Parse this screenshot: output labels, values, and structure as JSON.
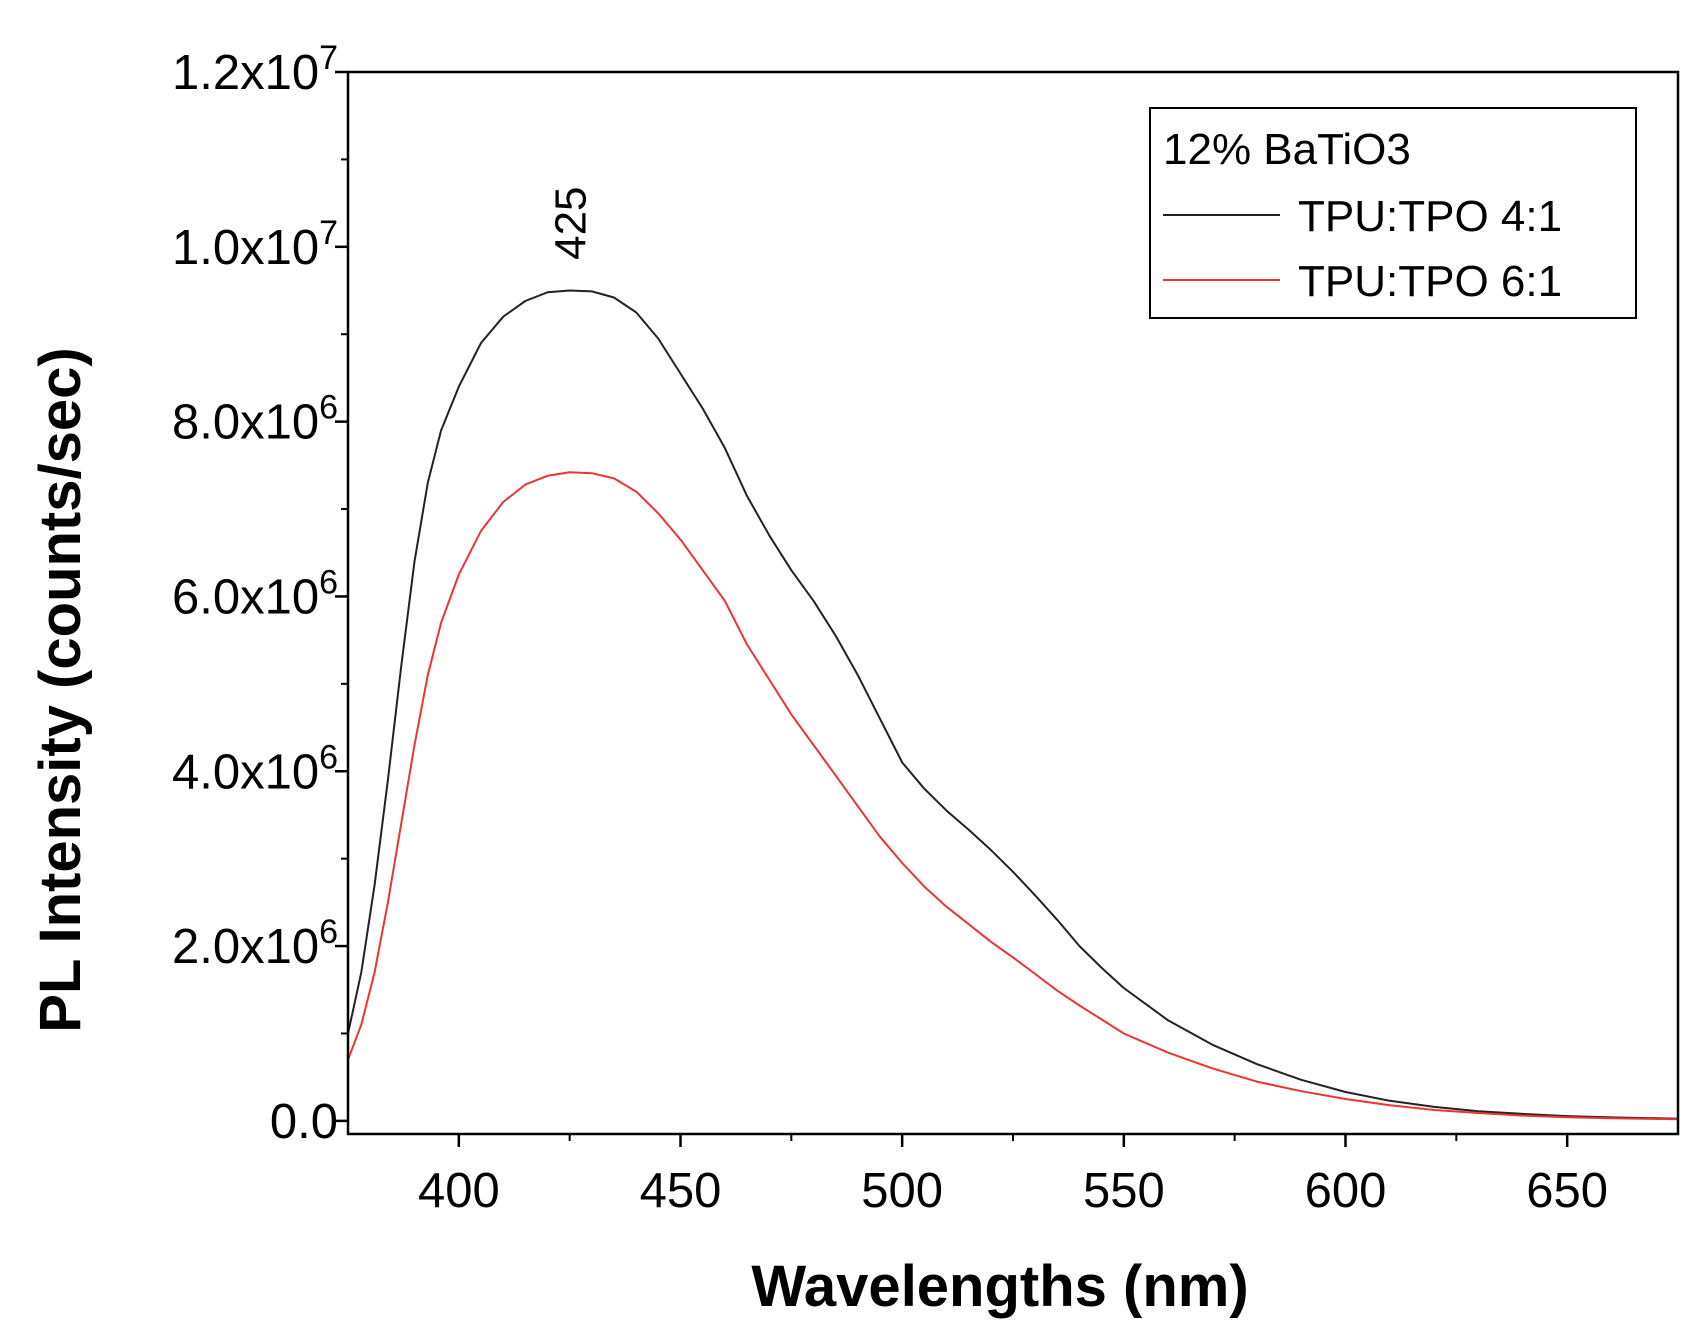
{
  "chart_data": {
    "type": "line",
    "xlabel": "Wavelengths (nm)",
    "ylabel": "PL Intensity (counts/sec)",
    "xlim": [
      375,
      675
    ],
    "ylim": [
      -150000,
      12000000
    ],
    "x_ticks": [
      {
        "value": 400,
        "label": "400"
      },
      {
        "value": 450,
        "label": "450"
      },
      {
        "value": 500,
        "label": "500"
      },
      {
        "value": 550,
        "label": "550"
      },
      {
        "value": 600,
        "label": "600"
      },
      {
        "value": 650,
        "label": "650"
      }
    ],
    "x_minor_ticks": [
      425,
      475,
      525,
      575,
      625
    ],
    "y_ticks": [
      {
        "value": 0,
        "label": "0.0",
        "exp": ""
      },
      {
        "value": 2000000,
        "label": "2.0x10",
        "exp": "6"
      },
      {
        "value": 4000000,
        "label": "4.0x10",
        "exp": "6"
      },
      {
        "value": 6000000,
        "label": "6.0x10",
        "exp": "6"
      },
      {
        "value": 8000000,
        "label": "8.0x10",
        "exp": "6"
      },
      {
        "value": 10000000,
        "label": "1.0x10",
        "exp": "7"
      },
      {
        "value": 12000000,
        "label": "1.2x10",
        "exp": "7"
      }
    ],
    "y_minor_ticks": [
      1000000,
      3000000,
      5000000,
      7000000,
      9000000,
      11000000
    ],
    "grid": false,
    "legend": {
      "title": "12% BaTiO3",
      "placement": "top-right"
    },
    "annotations": [
      {
        "text": "425",
        "x": 425,
        "y": 9850000,
        "rotation": -90
      }
    ],
    "series": [
      {
        "name": "TPU:TPO 4:1",
        "color": "#222222",
        "points": [
          [
            375,
            1000000
          ],
          [
            378,
            1700000
          ],
          [
            381,
            2700000
          ],
          [
            384,
            3900000
          ],
          [
            387,
            5200000
          ],
          [
            390,
            6400000
          ],
          [
            393,
            7300000
          ],
          [
            396,
            7900000
          ],
          [
            400,
            8400000
          ],
          [
            405,
            8900000
          ],
          [
            410,
            9200000
          ],
          [
            415,
            9380000
          ],
          [
            420,
            9480000
          ],
          [
            425,
            9500000
          ],
          [
            430,
            9490000
          ],
          [
            435,
            9420000
          ],
          [
            440,
            9250000
          ],
          [
            445,
            8950000
          ],
          [
            450,
            8550000
          ],
          [
            455,
            8150000
          ],
          [
            460,
            7700000
          ],
          [
            465,
            7150000
          ],
          [
            470,
            6700000
          ],
          [
            475,
            6300000
          ],
          [
            480,
            5950000
          ],
          [
            485,
            5550000
          ],
          [
            490,
            5100000
          ],
          [
            495,
            4600000
          ],
          [
            500,
            4100000
          ],
          [
            505,
            3800000
          ],
          [
            510,
            3550000
          ],
          [
            515,
            3330000
          ],
          [
            520,
            3100000
          ],
          [
            525,
            2850000
          ],
          [
            530,
            2580000
          ],
          [
            535,
            2300000
          ],
          [
            540,
            2000000
          ],
          [
            545,
            1750000
          ],
          [
            550,
            1520000
          ],
          [
            560,
            1150000
          ],
          [
            570,
            870000
          ],
          [
            580,
            650000
          ],
          [
            590,
            470000
          ],
          [
            600,
            330000
          ],
          [
            610,
            230000
          ],
          [
            620,
            160000
          ],
          [
            630,
            110000
          ],
          [
            640,
            80000
          ],
          [
            650,
            55000
          ],
          [
            660,
            40000
          ],
          [
            675,
            25000
          ]
        ]
      },
      {
        "name": "TPU:TPO 6:1",
        "color": "#ee3333",
        "points": [
          [
            375,
            700000
          ],
          [
            378,
            1100000
          ],
          [
            381,
            1700000
          ],
          [
            384,
            2500000
          ],
          [
            387,
            3400000
          ],
          [
            390,
            4300000
          ],
          [
            393,
            5100000
          ],
          [
            396,
            5700000
          ],
          [
            400,
            6250000
          ],
          [
            405,
            6750000
          ],
          [
            410,
            7080000
          ],
          [
            415,
            7280000
          ],
          [
            420,
            7380000
          ],
          [
            425,
            7420000
          ],
          [
            430,
            7410000
          ],
          [
            435,
            7350000
          ],
          [
            440,
            7200000
          ],
          [
            445,
            6950000
          ],
          [
            450,
            6650000
          ],
          [
            455,
            6300000
          ],
          [
            460,
            5950000
          ],
          [
            465,
            5450000
          ],
          [
            470,
            5050000
          ],
          [
            475,
            4650000
          ],
          [
            480,
            4300000
          ],
          [
            485,
            3950000
          ],
          [
            490,
            3600000
          ],
          [
            495,
            3250000
          ],
          [
            500,
            2950000
          ],
          [
            505,
            2680000
          ],
          [
            510,
            2450000
          ],
          [
            515,
            2250000
          ],
          [
            520,
            2050000
          ],
          [
            525,
            1870000
          ],
          [
            530,
            1680000
          ],
          [
            535,
            1490000
          ],
          [
            540,
            1320000
          ],
          [
            545,
            1160000
          ],
          [
            550,
            1000000
          ],
          [
            560,
            780000
          ],
          [
            570,
            600000
          ],
          [
            580,
            450000
          ],
          [
            590,
            340000
          ],
          [
            600,
            250000
          ],
          [
            610,
            180000
          ],
          [
            620,
            125000
          ],
          [
            630,
            90000
          ],
          [
            640,
            60000
          ],
          [
            650,
            42000
          ],
          [
            660,
            30000
          ],
          [
            675,
            18000
          ]
        ]
      }
    ]
  }
}
